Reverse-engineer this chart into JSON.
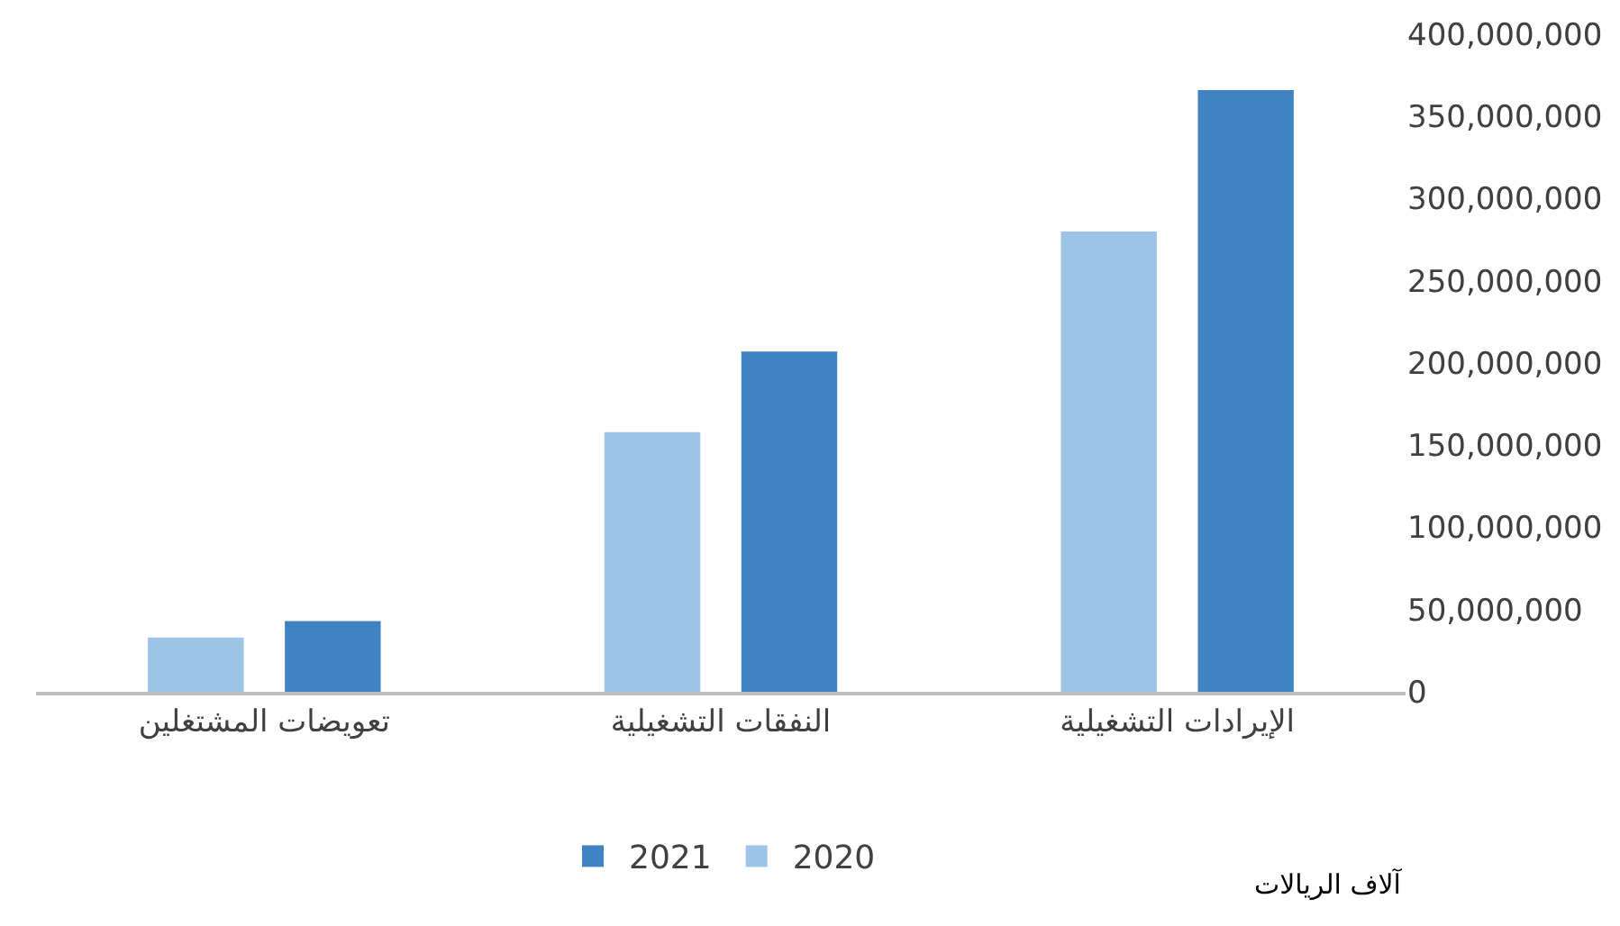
{
  "chart_data": {
    "type": "bar",
    "categories": [
      "تعويضات المشتغلين",
      "النفقات التشغيلية",
      "الإيرادات التشغيلية"
    ],
    "series": [
      {
        "name": "2020",
        "color": "#9dc3e6",
        "values": [
          33000000,
          158000000,
          280000000
        ]
      },
      {
        "name": "2021",
        "color": "#3f83c5",
        "values": [
          43000000,
          207000000,
          366000000
        ]
      }
    ],
    "ylim": [
      0,
      400000000
    ],
    "yticks": [
      {
        "value": 0,
        "label": "0"
      },
      {
        "value": 50000000,
        "label": "50,000,000"
      },
      {
        "value": 100000000,
        "label": "100,000,000"
      },
      {
        "value": 150000000,
        "label": "150,000,000"
      },
      {
        "value": 200000000,
        "label": "200,000,000"
      },
      {
        "value": 250000000,
        "label": "250,000,000"
      },
      {
        "value": 300000000,
        "label": "300,000,000"
      },
      {
        "value": 350000000,
        "label": "350,000,000"
      },
      {
        "value": 400000000,
        "label": "400,000,000"
      }
    ],
    "annotations": [
      "آلاف الريالات"
    ],
    "legend": "bottom"
  }
}
